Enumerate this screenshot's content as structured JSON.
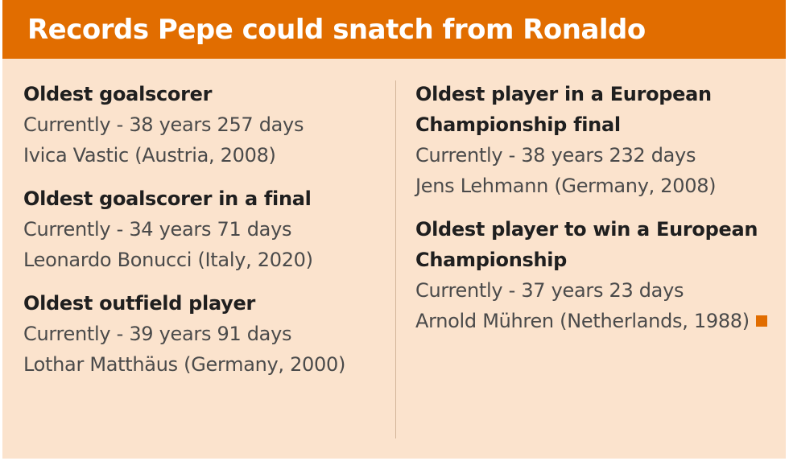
{
  "header": {
    "title": "Records Pepe could snatch from Ronaldo"
  },
  "colors": {
    "header_bg": "#e16d00",
    "card_bg": "#fbe3cd",
    "accent": "#e16d00"
  },
  "left_records": [
    {
      "title": "Oldest goalscorer",
      "current": "Currently - 38 years 257 days",
      "holder": "Ivica Vastic (Austria, 2008)"
    },
    {
      "title": "Oldest goalscorer in a final",
      "current": "Currently - 34 years 71 days",
      "holder": "Leonardo Bonucci (Italy, 2020)"
    },
    {
      "title": "Oldest outfield player",
      "current": "Currently - 39 years 91 days",
      "holder": "Lothar Matthäus (Germany, 2000)"
    }
  ],
  "right_records": [
    {
      "title": "Oldest player in a European Championship final",
      "current": "Currently - 38 years 232 days",
      "holder": "Jens Lehmann (Germany, 2008)"
    },
    {
      "title": "Oldest player to win a European Championship",
      "current": "Currently - 37 years 23 days",
      "holder": "Arnold Mühren (Netherlands, 1988)"
    }
  ],
  "end_mark_icon": "orange-square"
}
